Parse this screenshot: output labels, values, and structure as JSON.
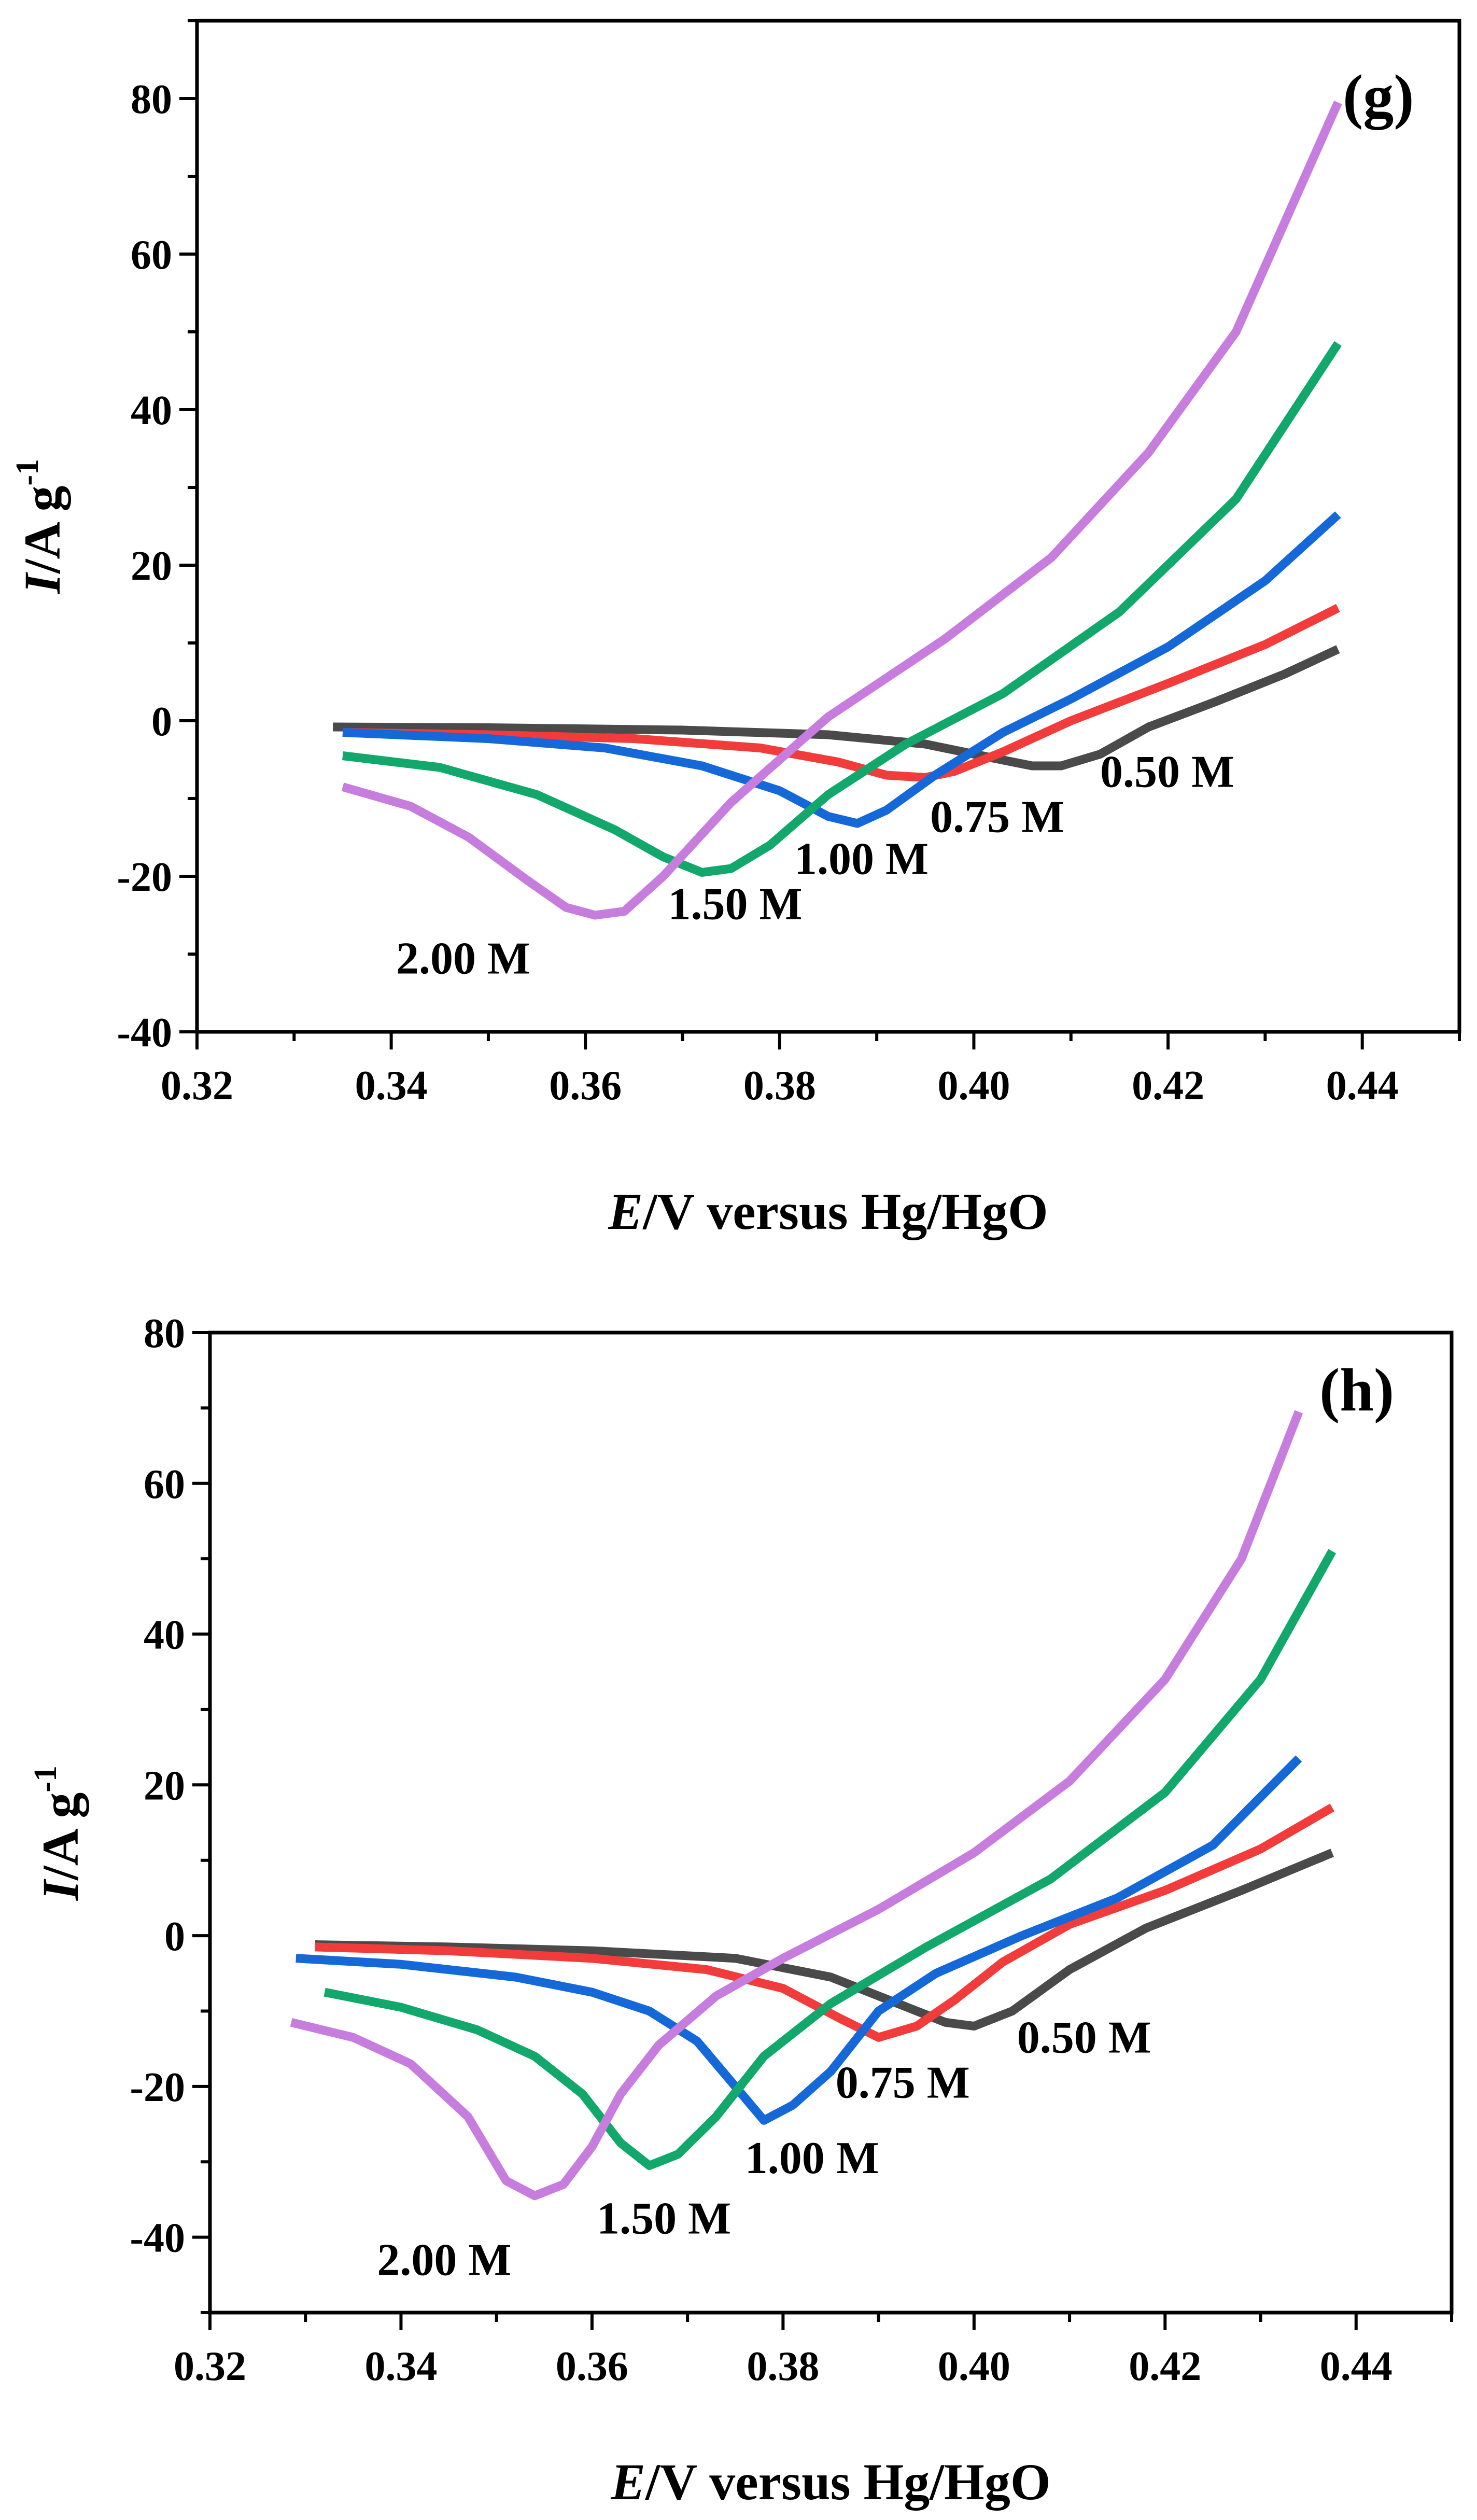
{
  "colors": {
    "0.50 M": "#4a4a4a",
    "0.75 M": "#f23b3b",
    "1.00 M": "#1568d8",
    "1.50 M": "#13a86b",
    "2.00 M": "#c77ddd"
  },
  "chart_data": [
    {
      "type": "line",
      "panel": "(g)",
      "xlabel_italic": "E",
      "xlabel_rest": "/V versus Hg/HgO",
      "ylabel_italic": "I",
      "ylabel_rest": "/A g",
      "ylabel_sup": "-1",
      "xlim": [
        0.32,
        0.45
      ],
      "ylim": [
        -40,
        90
      ],
      "xticks": [
        0.32,
        0.34,
        0.36,
        0.38,
        0.4,
        0.42,
        0.44
      ],
      "xtick_labels": [
        "0.32",
        "0.34",
        "0.36",
        "0.38",
        "0.40",
        "0.42",
        "0.44"
      ],
      "yticks": [
        -40,
        -20,
        0,
        20,
        40,
        60,
        80
      ],
      "ytick_labels": [
        "-40",
        "-20",
        "0",
        "20",
        "40",
        "60",
        "80"
      ],
      "series": [
        {
          "name": "0.50 M",
          "label_anchor": [
            0.413,
            -8.5
          ],
          "x": [
            0.334,
            0.35,
            0.37,
            0.385,
            0.395,
            0.402,
            0.406,
            0.409,
            0.413,
            0.418,
            0.425,
            0.432,
            0.4375
          ],
          "y": [
            -0.8,
            -0.9,
            -1.2,
            -1.8,
            -3.0,
            -4.8,
            -5.8,
            -5.8,
            -4.3,
            -0.8,
            2.5,
            6.0,
            9.2
          ]
        },
        {
          "name": "0.75 M",
          "label_anchor": [
            0.3955,
            -14.3
          ],
          "x": [
            0.335,
            0.35,
            0.365,
            0.378,
            0.386,
            0.391,
            0.395,
            0.398,
            0.403,
            0.41,
            0.42,
            0.43,
            0.4375
          ],
          "y": [
            -1.5,
            -1.8,
            -2.3,
            -3.5,
            -5.3,
            -7.0,
            -7.3,
            -6.5,
            -4.0,
            0.0,
            4.8,
            9.8,
            14.5
          ]
        },
        {
          "name": "1.00 M",
          "label_anchor": [
            0.3815,
            -19.7
          ],
          "x": [
            0.335,
            0.35,
            0.362,
            0.372,
            0.38,
            0.385,
            0.388,
            0.391,
            0.396,
            0.403,
            0.41,
            0.42,
            0.43,
            0.4375
          ],
          "y": [
            -1.5,
            -2.3,
            -3.5,
            -5.8,
            -9.0,
            -12.3,
            -13.2,
            -11.5,
            -7.0,
            -1.5,
            2.8,
            9.5,
            18.0,
            26.5
          ]
        },
        {
          "name": "1.50 M",
          "label_anchor": [
            0.3685,
            -25.5
          ],
          "x": [
            0.335,
            0.345,
            0.355,
            0.363,
            0.368,
            0.372,
            0.375,
            0.379,
            0.385,
            0.393,
            0.403,
            0.415,
            0.427,
            0.4375
          ],
          "y": [
            -4.5,
            -6.0,
            -9.5,
            -14.0,
            -17.5,
            -19.5,
            -19.0,
            -16.0,
            -9.5,
            -3.0,
            3.5,
            14.0,
            28.5,
            48.5
          ]
        },
        {
          "name": "2.00 M",
          "label_anchor": [
            0.3405,
            -32.5
          ],
          "x": [
            0.335,
            0.342,
            0.348,
            0.354,
            0.358,
            0.361,
            0.364,
            0.368,
            0.375,
            0.385,
            0.397,
            0.408,
            0.418,
            0.427,
            0.4375
          ],
          "y": [
            -8.5,
            -11.0,
            -15.0,
            -20.5,
            -24.0,
            -25.0,
            -24.5,
            -20.0,
            -10.5,
            0.5,
            10.5,
            21.0,
            34.5,
            50.0,
            79.5
          ]
        }
      ]
    },
    {
      "type": "line",
      "panel": "(h)",
      "xlabel_italic": "E",
      "xlabel_rest": "/V versus Hg/HgO",
      "ylabel_italic": "I",
      "ylabel_rest": "/A g",
      "ylabel_sup": "-1",
      "xlim": [
        0.32,
        0.45
      ],
      "ylim": [
        -50,
        80
      ],
      "xticks": [
        0.32,
        0.34,
        0.36,
        0.38,
        0.4,
        0.42,
        0.44
      ],
      "xtick_labels": [
        "0.32",
        "0.34",
        "0.36",
        "0.38",
        "0.40",
        "0.42",
        "0.44"
      ],
      "yticks": [
        -40,
        -20,
        0,
        20,
        40,
        60,
        80
      ],
      "ytick_labels": [
        "-40",
        "-20",
        "0",
        "20",
        "40",
        "60",
        "80"
      ],
      "series": [
        {
          "name": "0.50 M",
          "label_anchor": [
            0.4045,
            -15.5
          ],
          "x": [
            0.331,
            0.345,
            0.36,
            0.375,
            0.385,
            0.392,
            0.397,
            0.4,
            0.404,
            0.41,
            0.418,
            0.428,
            0.4375
          ],
          "y": [
            -1.2,
            -1.5,
            -2.0,
            -3.0,
            -5.5,
            -9.0,
            -11.5,
            -12.0,
            -10.0,
            -4.5,
            1.0,
            6.0,
            11.0
          ]
        },
        {
          "name": "0.75 M",
          "label_anchor": [
            0.3855,
            -21.5
          ],
          "x": [
            0.331,
            0.345,
            0.36,
            0.372,
            0.38,
            0.386,
            0.39,
            0.394,
            0.398,
            0.403,
            0.41,
            0.42,
            0.43,
            0.4375
          ],
          "y": [
            -1.5,
            -2.0,
            -3.0,
            -4.5,
            -7.0,
            -11.0,
            -13.5,
            -12.0,
            -8.5,
            -3.5,
            1.5,
            6.0,
            11.5,
            17.0
          ]
        },
        {
          "name": "1.00 M",
          "label_anchor": [
            0.376,
            -31.5
          ],
          "x": [
            0.329,
            0.34,
            0.352,
            0.36,
            0.366,
            0.371,
            0.375,
            0.378,
            0.381,
            0.385,
            0.39,
            0.396,
            0.405,
            0.415,
            0.425,
            0.434
          ],
          "y": [
            -3.0,
            -3.8,
            -5.5,
            -7.5,
            -10.0,
            -14.0,
            -20.0,
            -24.5,
            -22.5,
            -18.0,
            -10.0,
            -5.0,
            0.0,
            5.0,
            12.0,
            23.5
          ]
        },
        {
          "name": "1.50 M",
          "label_anchor": [
            0.3605,
            -39.5
          ],
          "x": [
            0.332,
            0.34,
            0.348,
            0.354,
            0.359,
            0.363,
            0.366,
            0.369,
            0.373,
            0.378,
            0.385,
            0.395,
            0.408,
            0.42,
            0.43,
            0.4375
          ],
          "y": [
            -7.5,
            -9.5,
            -12.5,
            -16.0,
            -21.0,
            -27.5,
            -30.5,
            -29.0,
            -24.0,
            -16.0,
            -9.0,
            -1.5,
            7.5,
            19.0,
            34.0,
            51.0
          ]
        },
        {
          "name": "2.00 M",
          "label_anchor": [
            0.3375,
            -45.0
          ],
          "x": [
            0.3285,
            0.335,
            0.341,
            0.347,
            0.351,
            0.354,
            0.357,
            0.36,
            0.363,
            0.367,
            0.373,
            0.38,
            0.39,
            0.4,
            0.41,
            0.42,
            0.428,
            0.434
          ],
          "y": [
            -11.5,
            -13.5,
            -17.0,
            -24.0,
            -32.5,
            -34.5,
            -33.0,
            -28.0,
            -21.0,
            -14.5,
            -8.0,
            -3.0,
            3.5,
            11.0,
            20.5,
            34.0,
            50.0,
            69.5
          ]
        }
      ]
    }
  ]
}
